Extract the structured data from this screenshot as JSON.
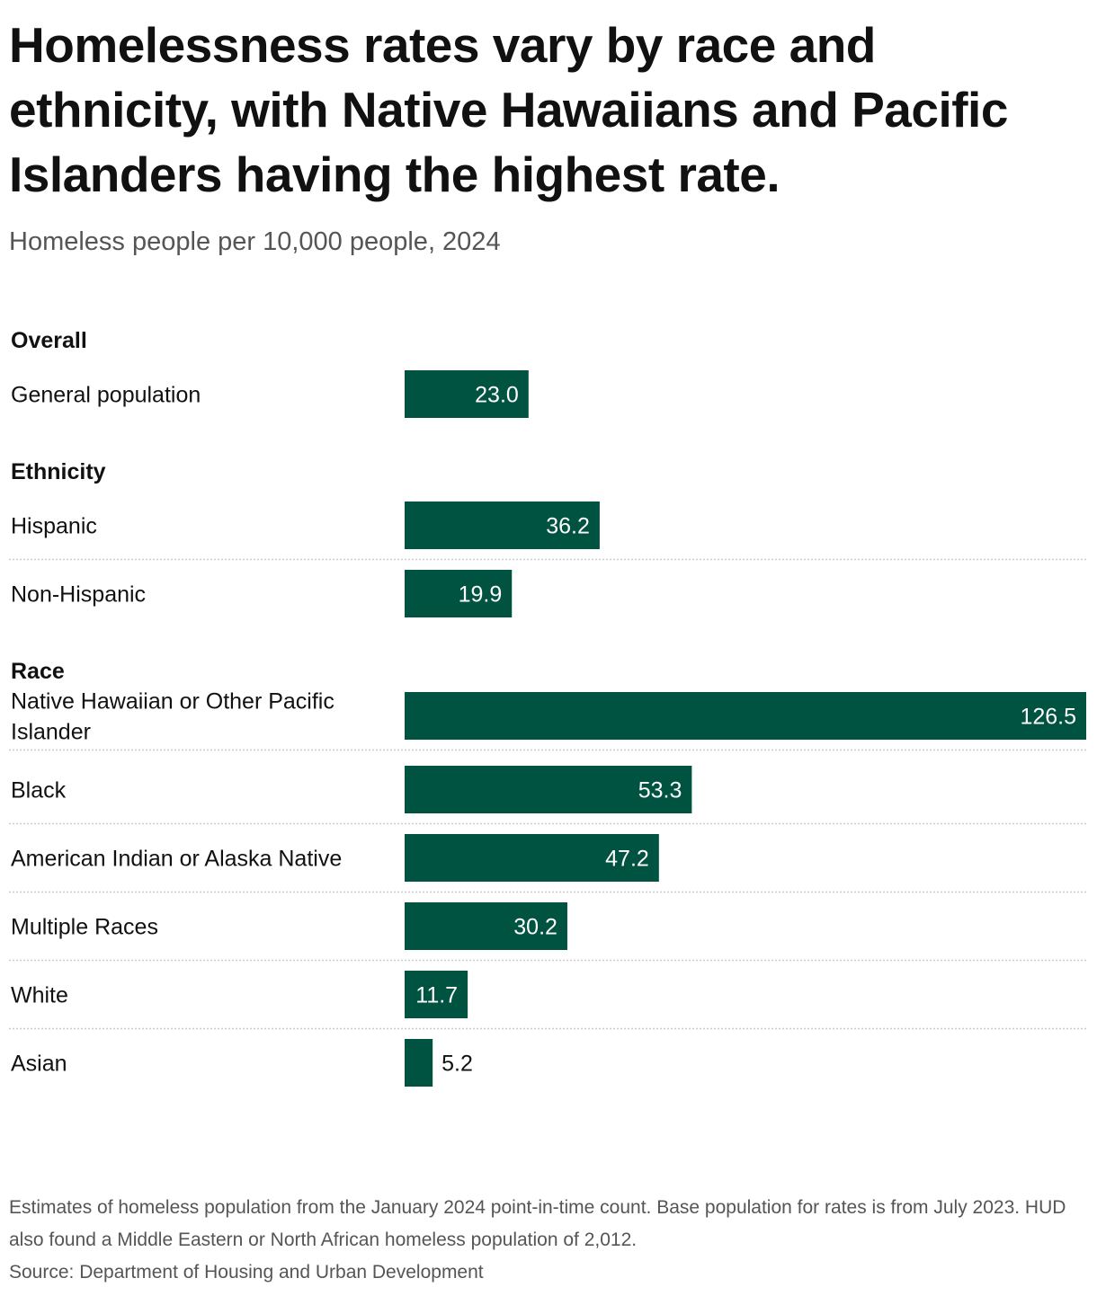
{
  "title": "Homelessness rates vary by race and ethnicity, with Native Hawaiians and Pacific Islanders having the highest rate.",
  "subtitle": "Homeless people per 10,000 people, 2024",
  "note": "Estimates of homeless population from the January 2024 point-in-time count. Base population for rates is from July 2023. HUD also found a Middle Eastern or North African homeless population of 2,012.",
  "source": "Source: Department of Housing and Urban Development",
  "colors": {
    "bar": "#005341",
    "label_inside": "#ffffff",
    "label_outside": "#111111",
    "divider": "#cccccc"
  },
  "chart_data": {
    "type": "bar",
    "orientation": "horizontal",
    "groups": [
      {
        "name": "Overall",
        "rows": [
          {
            "label": "General population",
            "value": 23.0,
            "value_label": "23.0"
          }
        ]
      },
      {
        "name": "Ethnicity",
        "rows": [
          {
            "label": "Hispanic",
            "value": 36.2,
            "value_label": "36.2"
          },
          {
            "label": "Non-Hispanic",
            "value": 19.9,
            "value_label": "19.9"
          }
        ]
      },
      {
        "name": "Race",
        "rows": [
          {
            "label": "Native Hawaiian or Other Pacific Islander",
            "label_lines": [
              "Native Hawaiian or Other Pacific",
              "Islander"
            ],
            "value": 126.5,
            "value_label": "126.5"
          },
          {
            "label": "Black",
            "value": 53.3,
            "value_label": "53.3"
          },
          {
            "label": "American Indian or Alaska Native",
            "value": 47.2,
            "value_label": "47.2"
          },
          {
            "label": "Multiple Races",
            "value": 30.2,
            "value_label": "30.2"
          },
          {
            "label": "White",
            "value": 11.7,
            "value_label": "11.7"
          },
          {
            "label": "Asian",
            "value": 5.2,
            "value_label": "5.2"
          }
        ]
      }
    ],
    "xlim": [
      0,
      126.5
    ],
    "grid": false,
    "legend": "none"
  }
}
